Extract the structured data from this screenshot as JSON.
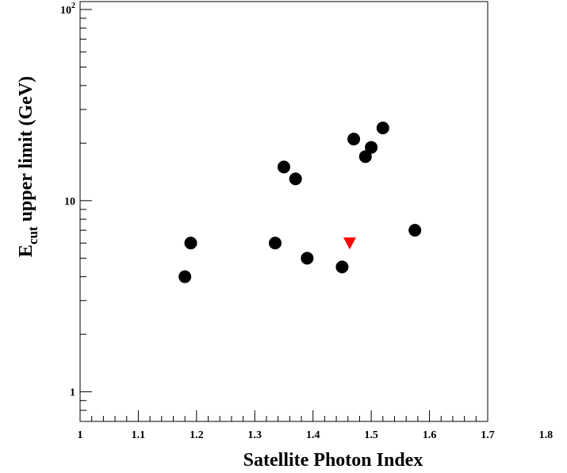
{
  "chart_data": {
    "type": "scatter",
    "xlabel": "Satellite Photon Index",
    "ylabel": {
      "main": "E",
      "sub": "cut",
      "rest": " upper limit (GeV)"
    },
    "xlim": [
      1.0,
      1.7
    ],
    "ylim": [
      0.7,
      110
    ],
    "y_scale": "log",
    "x_ticks": [
      {
        "value": 1.0,
        "label": "1"
      },
      {
        "value": 1.1,
        "label": "1.1"
      },
      {
        "value": 1.2,
        "label": "1.2"
      },
      {
        "value": 1.3,
        "label": "1.3"
      },
      {
        "value": 1.4,
        "label": "1.4"
      },
      {
        "value": 1.5,
        "label": "1.5"
      },
      {
        "value": 1.6,
        "label": "1.6"
      },
      {
        "value": 1.7,
        "label": "1.7"
      },
      {
        "value": 1.8,
        "label": "1.8"
      }
    ],
    "y_ticks": [
      {
        "value": 1,
        "label": "1"
      },
      {
        "value": 10,
        "label": "10"
      },
      {
        "value": 100,
        "label": "10",
        "sup": "2"
      }
    ],
    "series": [
      {
        "marker": "circle",
        "color": "#000000",
        "points": [
          {
            "x": 1.18,
            "y": 4.0
          },
          {
            "x": 1.19,
            "y": 6.0
          },
          {
            "x": 1.335,
            "y": 6.0
          },
          {
            "x": 1.35,
            "y": 15.0
          },
          {
            "x": 1.37,
            "y": 13.0
          },
          {
            "x": 1.39,
            "y": 5.0
          },
          {
            "x": 1.45,
            "y": 4.5
          },
          {
            "x": 1.47,
            "y": 21.0
          },
          {
            "x": 1.49,
            "y": 17.0
          },
          {
            "x": 1.5,
            "y": 19.0
          },
          {
            "x": 1.52,
            "y": 24.0
          },
          {
            "x": 1.575,
            "y": 7.0
          }
        ]
      },
      {
        "marker": "triangle-down",
        "color": "#ff0000",
        "points": [
          {
            "x": 1.463,
            "y": 6.0
          }
        ]
      }
    ]
  }
}
